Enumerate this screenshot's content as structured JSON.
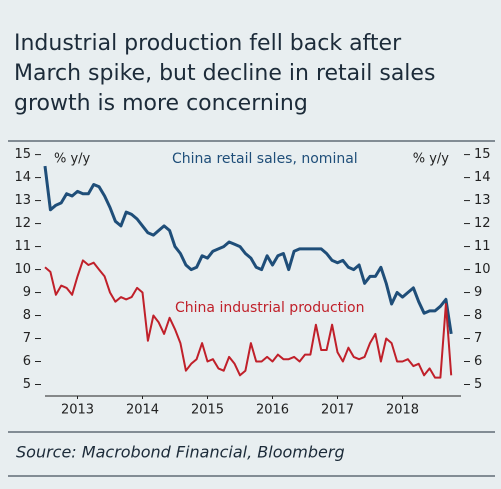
{
  "chart_data": {
    "type": "line",
    "title_lines": [
      "Industrial production fell back after",
      "March spike, but decline in retail sales",
      "growth is more concerning"
    ],
    "y_label": "% y/y",
    "y2_label": "% y/y",
    "source": "Source: Macrobond Financial, Bloomberg",
    "xlim": [
      2013,
      2019.4
    ],
    "xticks": [
      {
        "value": 2013.5,
        "label": "2013"
      },
      {
        "value": 2014.5,
        "label": "2014"
      },
      {
        "value": 2015.5,
        "label": "2015"
      },
      {
        "value": 2016.5,
        "label": "2016"
      },
      {
        "value": 2017.5,
        "label": "2017"
      },
      {
        "value": 2018.5,
        "label": "2018"
      }
    ],
    "ylim": [
      4.5,
      15.2
    ],
    "yticks": [
      5,
      6,
      7,
      8,
      9,
      10,
      11,
      12,
      13,
      14,
      15
    ],
    "y2lim": [
      4.5,
      15.2
    ],
    "y2ticks": [
      5,
      6,
      7,
      8,
      9,
      10,
      11,
      12,
      13,
      14,
      15
    ],
    "x": [
      2013,
      2013.083,
      2013.167,
      2013.25,
      2013.333,
      2013.417,
      2013.5,
      2013.583,
      2013.667,
      2013.75,
      2013.833,
      2013.917,
      2014,
      2014.083,
      2014.167,
      2014.25,
      2014.333,
      2014.417,
      2014.5,
      2014.583,
      2014.667,
      2014.75,
      2014.833,
      2014.917,
      2015,
      2015.083,
      2015.167,
      2015.25,
      2015.333,
      2015.417,
      2015.5,
      2015.583,
      2015.667,
      2015.75,
      2015.833,
      2015.917,
      2016,
      2016.083,
      2016.167,
      2016.25,
      2016.333,
      2016.417,
      2016.5,
      2016.583,
      2016.667,
      2016.75,
      2016.833,
      2016.917,
      2017,
      2017.083,
      2017.167,
      2017.25,
      2017.333,
      2017.417,
      2017.5,
      2017.583,
      2017.667,
      2017.75,
      2017.833,
      2017.917,
      2018,
      2018.083,
      2018.167,
      2018.25,
      2018.333,
      2018.417,
      2018.5,
      2018.583,
      2018.667,
      2018.75,
      2018.833,
      2018.917,
      2019,
      2019.083,
      2019.167,
      2019.25
    ],
    "series": [
      {
        "name": "China retail sales, nominal",
        "color": "#1f4e79",
        "values": [
          14.5,
          12.6,
          12.8,
          12.9,
          13.3,
          13.2,
          13.4,
          13.3,
          13.3,
          13.7,
          13.6,
          13.2,
          12.7,
          12.1,
          11.9,
          12.5,
          12.4,
          12.2,
          11.9,
          11.6,
          11.5,
          11.7,
          11.9,
          11.7,
          11.0,
          10.7,
          10.2,
          10.0,
          10.1,
          10.6,
          10.5,
          10.8,
          10.9,
          11.0,
          11.2,
          11.1,
          11.0,
          10.7,
          10.5,
          10.1,
          10.0,
          10.6,
          10.2,
          10.6,
          10.7,
          10.0,
          10.8,
          10.9,
          10.9,
          10.9,
          10.9,
          10.9,
          10.7,
          10.4,
          10.3,
          10.4,
          10.1,
          10.0,
          10.2,
          9.4,
          9.7,
          9.7,
          10.1,
          9.4,
          8.5,
          9.0,
          8.8,
          9.0,
          9.2,
          8.6,
          8.1,
          8.2,
          8.2,
          8.4,
          8.7,
          7.2
        ]
      },
      {
        "name": "China industrial production",
        "color": "#c0202a",
        "values": [
          10.1,
          9.9,
          8.9,
          9.3,
          9.2,
          8.9,
          9.7,
          10.4,
          10.2,
          10.3,
          10.0,
          9.7,
          9.0,
          8.6,
          8.8,
          8.7,
          8.8,
          9.2,
          9.0,
          6.9,
          8.0,
          7.7,
          7.2,
          7.9,
          7.4,
          6.8,
          5.6,
          5.9,
          6.1,
          6.8,
          6.0,
          6.1,
          5.7,
          5.6,
          6.2,
          5.9,
          5.4,
          5.6,
          6.8,
          6.0,
          6.0,
          6.2,
          6.0,
          6.3,
          6.1,
          6.1,
          6.2,
          6.0,
          6.3,
          6.3,
          7.6,
          6.5,
          6.5,
          7.6,
          6.4,
          6.0,
          6.6,
          6.2,
          6.1,
          6.2,
          6.8,
          7.2,
          6.0,
          7.0,
          6.8,
          6.0,
          6.0,
          6.1,
          5.8,
          5.9,
          5.4,
          5.7,
          5.3,
          5.3,
          8.5,
          5.4
        ]
      }
    ]
  }
}
